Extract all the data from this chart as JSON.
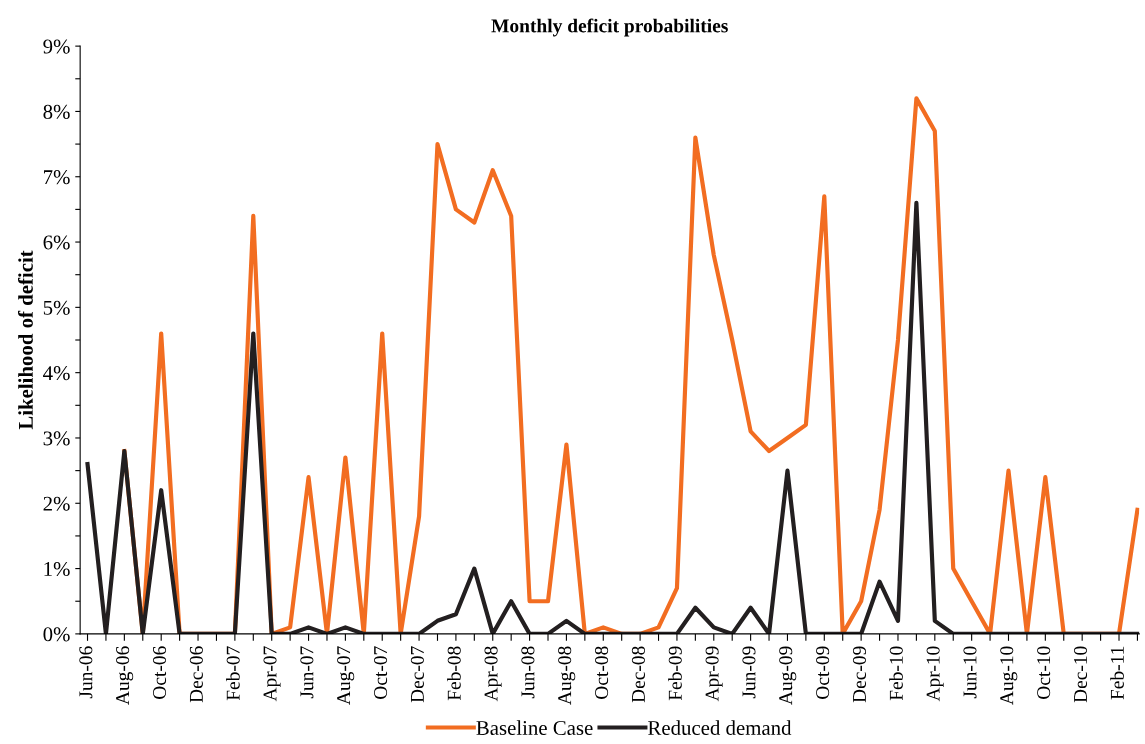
{
  "chart_data": {
    "type": "line",
    "title": "Monthly deficit probabilities",
    "ylabel": "Likelihood of deficit",
    "categories": [
      "Jun-06",
      null,
      "Aug-06",
      null,
      "Oct-06",
      null,
      "Dec-06",
      null,
      "Feb-07",
      null,
      "Apr-07",
      null,
      "Jun-07",
      null,
      "Aug-07",
      null,
      "Oct-07",
      null,
      "Dec-07",
      null,
      "Feb-08",
      null,
      "Apr-08",
      null,
      "Jun-08",
      null,
      "Aug-08",
      null,
      "Oct-08",
      null,
      "Dec-08",
      null,
      "Feb-09",
      null,
      "Apr-09",
      null,
      "Jun-09",
      null,
      "Aug-09",
      null,
      "Oct-09",
      null,
      "Dec-09",
      null,
      "Feb-10",
      null,
      "Apr-10",
      null,
      "Jun-10",
      null,
      "Aug-10",
      null,
      "Oct-10",
      null,
      "Dec-10",
      null,
      "Feb-11",
      null
    ],
    "series": [
      {
        "name": "Baseline Case",
        "color": "#f26d21",
        "values": [
          null,
          null,
          2.8,
          0,
          4.6,
          0,
          0,
          0,
          0,
          6.4,
          0,
          0.1,
          2.4,
          0,
          2.7,
          0,
          4.6,
          0,
          1.8,
          7.5,
          6.5,
          6.3,
          7.1,
          6.4,
          0.5,
          0.5,
          2.9,
          0,
          0.1,
          0,
          0,
          0.1,
          0.7,
          7.6,
          5.8,
          4.5,
          3.1,
          2.8,
          3.0,
          3.2,
          6.7,
          0,
          0.5,
          1.9,
          4.5,
          8.2,
          7.7,
          1.0,
          0.5,
          0,
          2.5,
          0,
          2.4,
          0,
          0,
          0,
          0,
          1.9
        ]
      },
      {
        "name": "Reduced demand",
        "color": "#231f20",
        "values": [
          2.6,
          0,
          2.8,
          0,
          2.2,
          0,
          0,
          0,
          0,
          4.6,
          0,
          0,
          0.1,
          0,
          0.1,
          0,
          0,
          0,
          0,
          0.2,
          0.3,
          1.0,
          0,
          0.5,
          0,
          0,
          0.2,
          0,
          0,
          0,
          0,
          0,
          0,
          0.4,
          0.1,
          0,
          0.4,
          0,
          2.5,
          0,
          0,
          0,
          0,
          0.8,
          0.2,
          6.6,
          0.2,
          0,
          0,
          0,
          0,
          0,
          0,
          0,
          0,
          0,
          0,
          0
        ]
      }
    ],
    "ylim": [
      0,
      9
    ],
    "yticks": [
      {
        "value": 0,
        "label": "0%"
      },
      {
        "value": 0.5,
        "label": null
      },
      {
        "value": 1,
        "label": "1%"
      },
      {
        "value": 1.5,
        "label": null
      },
      {
        "value": 2,
        "label": "2%"
      },
      {
        "value": 2.5,
        "label": null
      },
      {
        "value": 3,
        "label": "3%"
      },
      {
        "value": 3.5,
        "label": null
      },
      {
        "value": 4,
        "label": "4%"
      },
      {
        "value": 4.5,
        "label": null
      },
      {
        "value": 5,
        "label": "5%"
      },
      {
        "value": 5.5,
        "label": null
      },
      {
        "value": 6,
        "label": "6%"
      },
      {
        "value": 6.5,
        "label": null
      },
      {
        "value": 7,
        "label": "7%"
      },
      {
        "value": 7.5,
        "label": null
      },
      {
        "value": 8,
        "label": "8%"
      },
      {
        "value": 8.5,
        "label": null
      },
      {
        "value": 9,
        "label": "9%"
      }
    ],
    "grid": false,
    "legend": "bottom",
    "marker": "none",
    "line_style": "solid"
  }
}
